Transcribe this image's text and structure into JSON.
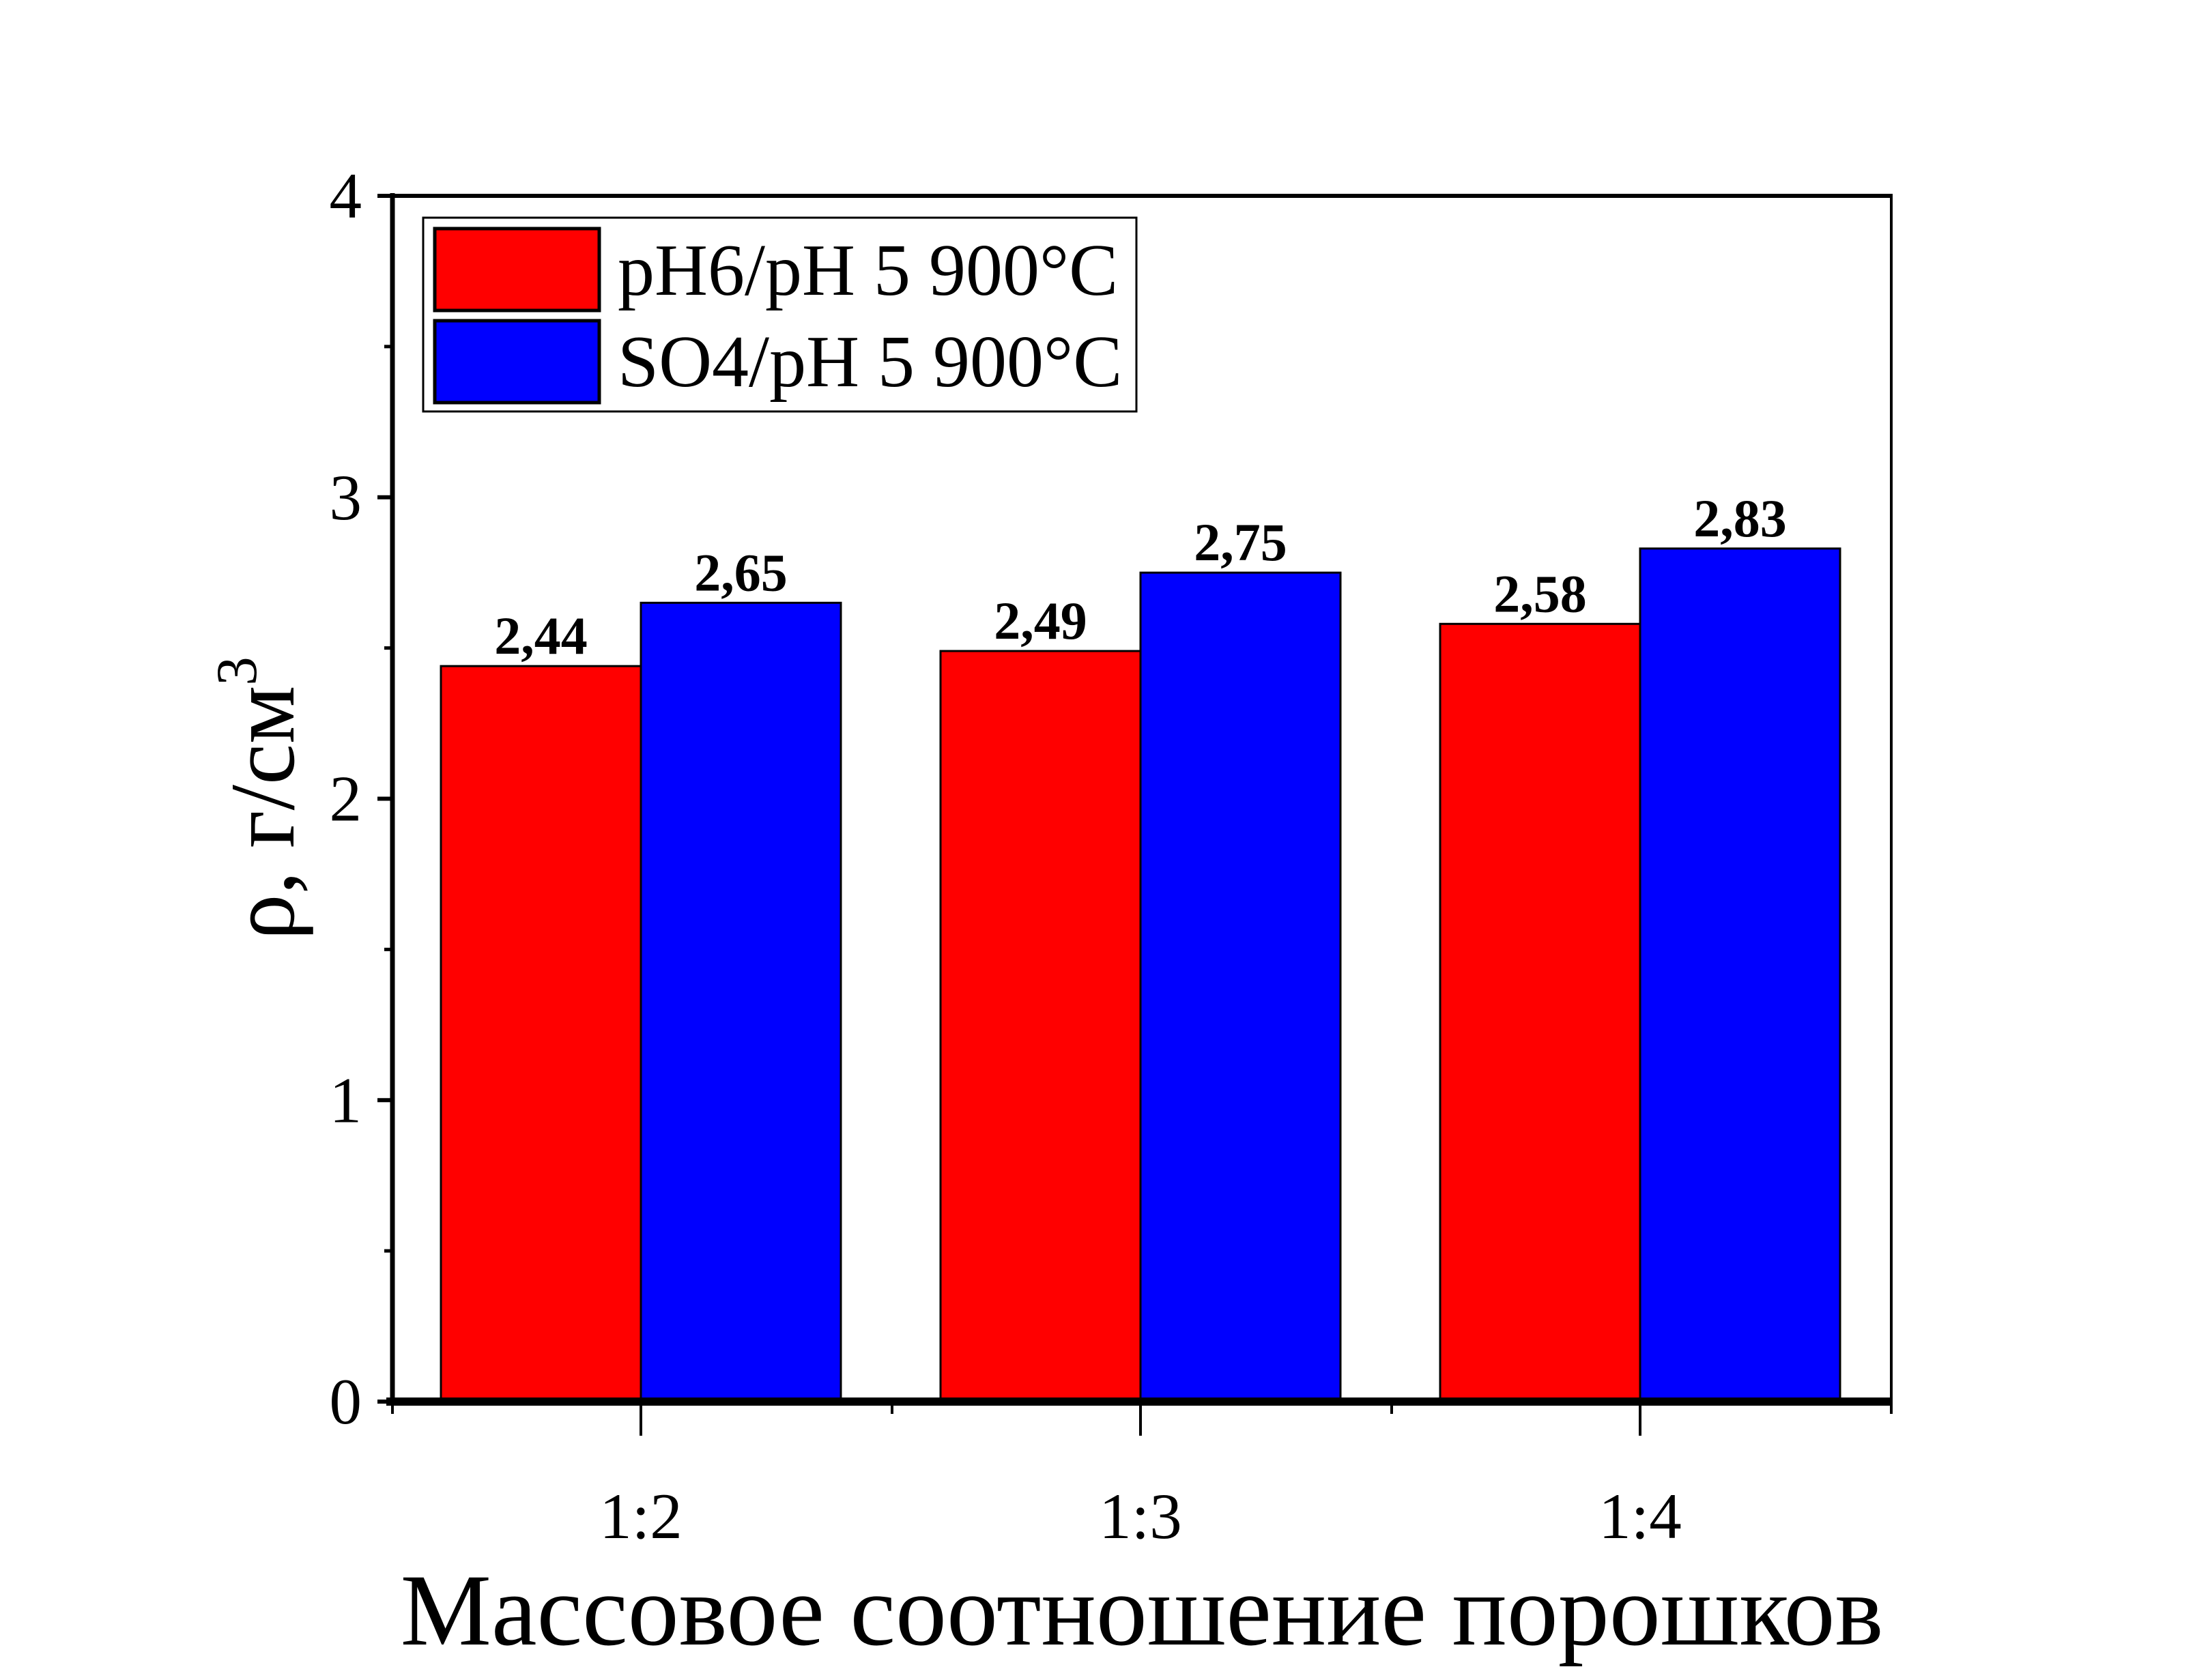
{
  "chart_data": {
    "type": "bar",
    "title": "",
    "xlabel": "Массовое соотношение порошков",
    "ylabel": "ρ, г/см",
    "ylabel_superscript": "3",
    "categories": [
      "1:2",
      "1:3",
      "1:4"
    ],
    "series": [
      {
        "name": "pH6/pH 5 900°C",
        "color": "#ff0000",
        "values": [
          2.44,
          2.49,
          2.58
        ],
        "labels": [
          "2,44",
          "2,49",
          "2,58"
        ]
      },
      {
        "name": "SO4/pH 5 900°C",
        "color": "#0000ff",
        "values": [
          2.65,
          2.75,
          2.83
        ],
        "labels": [
          "2,65",
          "2,75",
          "2,83"
        ]
      }
    ],
    "ylim": [
      0,
      4
    ],
    "yticks": [
      0,
      1,
      2,
      3,
      4
    ],
    "ytick_labels": [
      "0",
      "1",
      "2",
      "3",
      "4"
    ],
    "grid": false,
    "legend_position": "top-left"
  }
}
